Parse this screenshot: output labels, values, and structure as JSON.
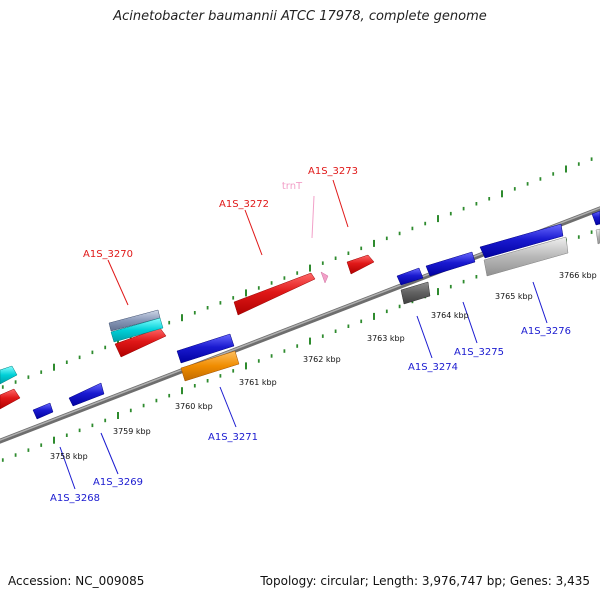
{
  "title": "Acinetobacter baumannii ATCC 17978, complete genome",
  "footer": {
    "accession": "Accession: NC_009085",
    "summary": "Topology: circular; Length: 3,976,747 bp; Genes: 3,435"
  },
  "kbp_labels": [
    "3758 kbp",
    "3759 kbp",
    "3760 kbp",
    "3761 kbp",
    "3762 kbp",
    "3763 kbp",
    "3764 kbp",
    "3765 kbp",
    "3766 kbp"
  ],
  "gene_labels": {
    "top": [
      {
        "id": "trnT",
        "color": "#f2a0c8"
      },
      {
        "id": "A1S_3273",
        "color": "#e01818"
      },
      {
        "id": "A1S_3272",
        "color": "#e01818"
      },
      {
        "id": "A1S_3270",
        "color": "#e01818"
      }
    ],
    "bottom": [
      {
        "id": "A1S_3276",
        "color": "#1a1ad0"
      },
      {
        "id": "A1S_3275",
        "color": "#1a1ad0"
      },
      {
        "id": "A1S_3274",
        "color": "#1a1ad0"
      },
      {
        "id": "A1S_3271",
        "color": "#1a1ad0"
      },
      {
        "id": "A1S_3269",
        "color": "#1a1ad0"
      },
      {
        "id": "A1S_3268",
        "color": "#1a1ad0"
      }
    ]
  },
  "colors": {
    "forward_gene": "#e01818",
    "reverse_gene": "#1a1ad0",
    "trna": "#f2a0c8",
    "backbone": "#808080",
    "tick": "#2e8b2e",
    "cyan_feature": "#00d0d8",
    "orange_feature": "#f08c00",
    "gray_feature": "#b8b8b8",
    "dark_feature": "#606060"
  }
}
